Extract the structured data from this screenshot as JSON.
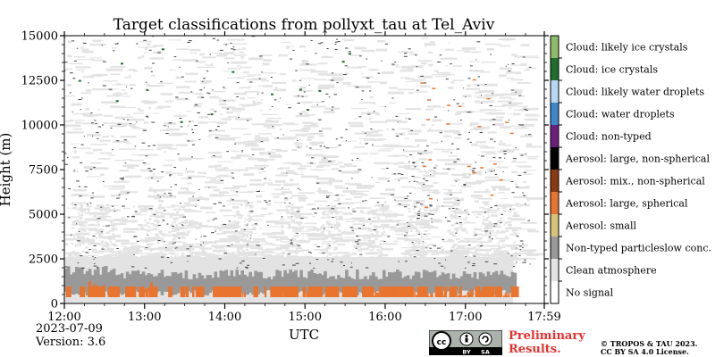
{
  "chart_data": {
    "type": "heatmap",
    "title": "Target classifications from pollyxt_tau at Tel_Aviv",
    "xlabel": "UTC",
    "ylabel": "Height (m)",
    "x_range": [
      "12:00",
      "17:59"
    ],
    "y_range": [
      0,
      15000
    ],
    "x_ticks": [
      "12:00",
      "13:00",
      "14:00",
      "15:00",
      "16:00",
      "17:00",
      "17:59"
    ],
    "y_ticks": [
      "0",
      "2500",
      "5000",
      "7500",
      "10000",
      "12500",
      "15000"
    ],
    "classes": [
      {
        "label": "Cloud: likely ice crystals",
        "color": "#8fbc6a"
      },
      {
        "label": "Cloud: ice crystals",
        "color": "#1f6e2c"
      },
      {
        "label": "Cloud: likely water droplets",
        "color": "#b8d8f2"
      },
      {
        "label": "Cloud: water droplets",
        "color": "#3f88c8"
      },
      {
        "label": "Cloud: non-typed",
        "color": "#6a1f7a"
      },
      {
        "label": "Aerosol: large, non-spherical",
        "color": "#000000"
      },
      {
        "label": "Aerosol: mix., non-spherical",
        "color": "#8a3a12"
      },
      {
        "label": "Aerosol: large, spherical",
        "color": "#e8742e"
      },
      {
        "label": "Aerosol: small",
        "color": "#d8c479"
      },
      {
        "label": "Non-typed particleslow conc.",
        "color": "#999999"
      },
      {
        "label": "Clean atmosphere",
        "color": "#e3e3e3"
      },
      {
        "label": "No signal",
        "color": "#ffffff"
      }
    ],
    "layers": [
      {
        "class": "Non-typed particleslow conc.",
        "height_range_m": [
          500,
          2000
        ],
        "time_range": [
          "12:00",
          "17:59"
        ]
      },
      {
        "class": "Aerosol: large, spherical",
        "height_range_m": [
          0,
          1000
        ],
        "time_range": [
          "12:00",
          "17:59"
        ],
        "pattern": "intermittent"
      },
      {
        "class": "Clean atmosphere",
        "height_range_m": [
          0,
          15000
        ],
        "time_range": [
          "12:00",
          "17:59"
        ],
        "pattern": "dense below 5000 m, sparse above"
      },
      {
        "class": "No signal",
        "height_range_m": [
          0,
          15000
        ],
        "time_range": [
          "12:00",
          "17:59"
        ],
        "pattern": "scattered speckle"
      }
    ]
  },
  "footer": {
    "date": "2023-07-09",
    "version": "Version: 3.6",
    "preliminary": [
      "Preliminary",
      "Results."
    ],
    "copyright": [
      "© TROPOS & TAU 2023.",
      "CC BY SA 4.0 License."
    ],
    "license_badge": {
      "cc": "cc",
      "by": "BY",
      "sa": "SA"
    }
  }
}
